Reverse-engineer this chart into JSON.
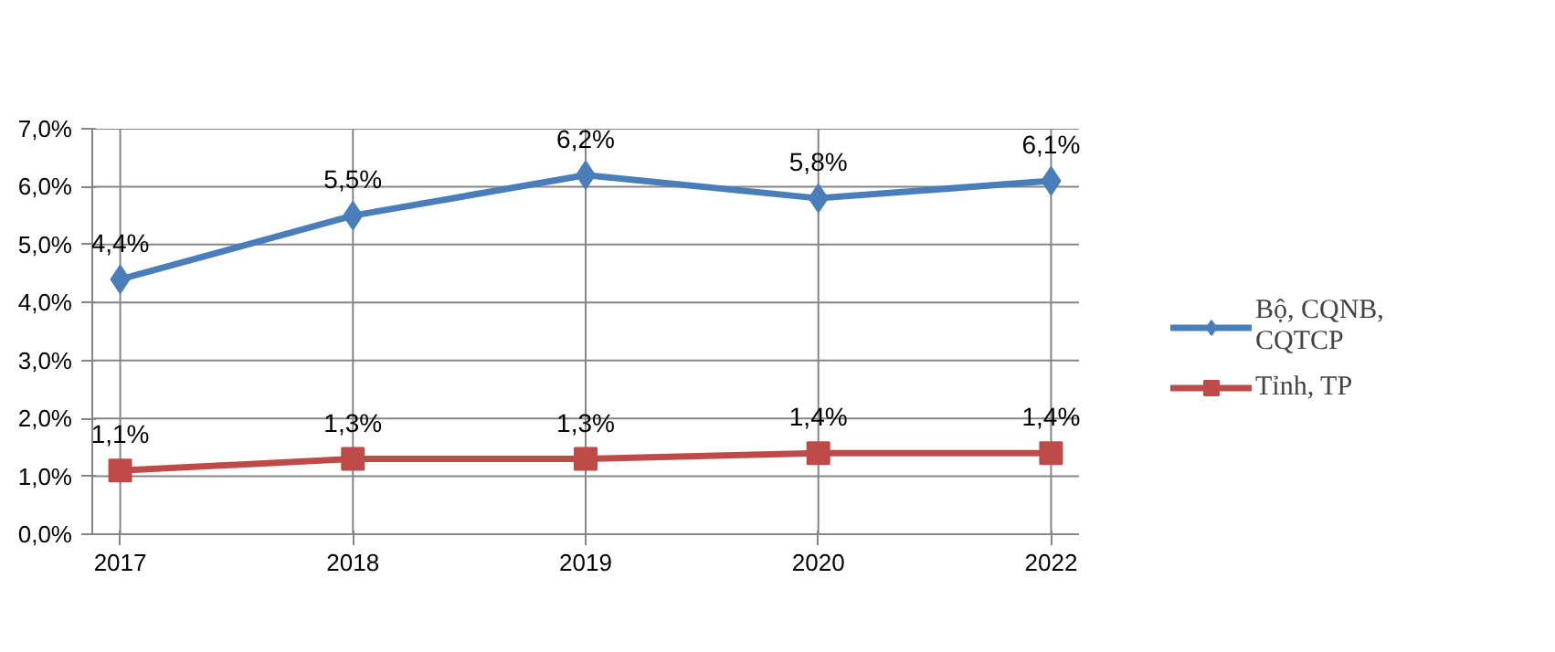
{
  "chart_data": {
    "type": "line",
    "categories": [
      "2017",
      "2018",
      "2019",
      "2020",
      "2022"
    ],
    "series": [
      {
        "name": "Bộ, CQNB, CQTCP",
        "color": "#4a7ebb",
        "marker": "diamond",
        "values": [
          4.4,
          5.5,
          6.2,
          5.8,
          6.1
        ],
        "value_labels": [
          "4,4%",
          "5,5%",
          "6,2%",
          "5,8%",
          "6,1%"
        ]
      },
      {
        "name": "Tỉnh, TP",
        "color": "#be4b48",
        "marker": "square",
        "values": [
          1.1,
          1.3,
          1.3,
          1.4,
          1.4
        ],
        "value_labels": [
          "1,1%",
          "1,3%",
          "1,3%",
          "1,4%",
          "1,4%"
        ]
      }
    ],
    "ylim": [
      0,
      7
    ],
    "yticks": [
      {
        "value": 0,
        "label": "0,0%"
      },
      {
        "value": 1,
        "label": "1,0%"
      },
      {
        "value": 2,
        "label": "2,0%"
      },
      {
        "value": 3,
        "label": "3,0%"
      },
      {
        "value": 4,
        "label": "4,0%"
      },
      {
        "value": 5,
        "label": "5,0%"
      },
      {
        "value": 6,
        "label": "6,0%"
      },
      {
        "value": 7,
        "label": "7,0%"
      }
    ],
    "grid": true,
    "legend": "right",
    "data_labels": true,
    "line_style": "solid"
  }
}
